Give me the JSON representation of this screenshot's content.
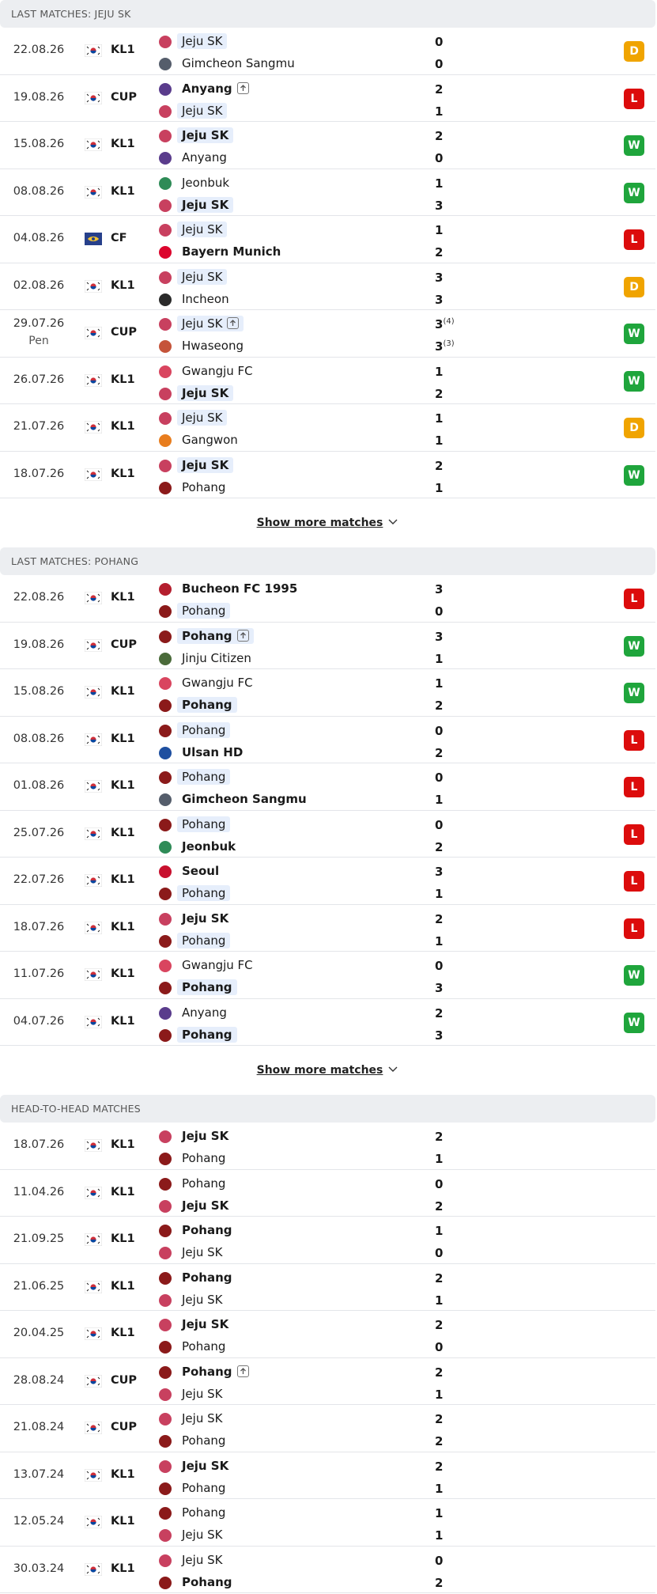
{
  "result_colors": {
    "W": "#1fa53c",
    "L": "#dc0c0c",
    "D": "#f0a400"
  },
  "logo_colors": {
    "Jeju SK": "#c8405f",
    "Gimcheon Sangmu": "#555d6b",
    "Anyang": "#5a3c8c",
    "Jeonbuk": "#2e8b57",
    "Bayern Munich": "#dc052d",
    "Incheon": "#2a2a2a",
    "Hwaseong": "#c5543a",
    "Gwangju FC": "#d9455f",
    "Gangwon": "#e87d1e",
    "Pohang": "#8b1a1a",
    "Bucheon FC 1995": "#b41e2e",
    "Jinju Citizen": "#4a6a3a",
    "Ulsan HD": "#1e4fa0",
    "Seoul": "#c8102e"
  },
  "sections": [
    {
      "title": "LAST MATCHES: JEJU SK",
      "show_more": "Show more matches",
      "matches": [
        {
          "date": "22.08.26",
          "flag": "kr",
          "competition": "KL1",
          "home": {
            "name": "Jeju SK",
            "highlight": true
          },
          "away": {
            "name": "Gimcheon Sangmu"
          },
          "home_score": 0,
          "away_score": 0,
          "result": "D"
        },
        {
          "date": "19.08.26",
          "flag": "kr",
          "competition": "CUP",
          "home": {
            "name": "Anyang",
            "advanced": true
          },
          "away": {
            "name": "Jeju SK",
            "highlight": true
          },
          "home_score": 2,
          "away_score": 1,
          "result": "L"
        },
        {
          "date": "15.08.26",
          "flag": "kr",
          "competition": "KL1",
          "home": {
            "name": "Jeju SK",
            "highlight": true
          },
          "away": {
            "name": "Anyang"
          },
          "home_score": 2,
          "away_score": 0,
          "result": "W"
        },
        {
          "date": "08.08.26",
          "flag": "kr",
          "competition": "KL1",
          "home": {
            "name": "Jeonbuk"
          },
          "away": {
            "name": "Jeju SK",
            "highlight": true
          },
          "home_score": 1,
          "away_score": 3,
          "result": "W"
        },
        {
          "date": "04.08.26",
          "flag": "world",
          "competition": "CF",
          "home": {
            "name": "Jeju SK",
            "highlight": true
          },
          "away": {
            "name": "Bayern Munich"
          },
          "home_score": 1,
          "away_score": 2,
          "result": "L"
        },
        {
          "date": "02.08.26",
          "flag": "kr",
          "competition": "KL1",
          "home": {
            "name": "Jeju SK",
            "highlight": true
          },
          "away": {
            "name": "Incheon"
          },
          "home_score": 3,
          "away_score": 3,
          "result": "D"
        },
        {
          "date": "29.07.26",
          "note": "Pen",
          "flag": "kr",
          "competition": "CUP",
          "home": {
            "name": "Jeju SK",
            "highlight": true,
            "advanced": true
          },
          "away": {
            "name": "Hwaseong"
          },
          "home_score": 3,
          "away_score": 3,
          "home_pen": "(4)",
          "away_pen": "(3)",
          "result": "W"
        },
        {
          "date": "26.07.26",
          "flag": "kr",
          "competition": "KL1",
          "home": {
            "name": "Gwangju FC"
          },
          "away": {
            "name": "Jeju SK",
            "highlight": true
          },
          "home_score": 1,
          "away_score": 2,
          "result": "W"
        },
        {
          "date": "21.07.26",
          "flag": "kr",
          "competition": "KL1",
          "home": {
            "name": "Jeju SK",
            "highlight": true
          },
          "away": {
            "name": "Gangwon"
          },
          "home_score": 1,
          "away_score": 1,
          "result": "D"
        },
        {
          "date": "18.07.26",
          "flag": "kr",
          "competition": "KL1",
          "home": {
            "name": "Jeju SK",
            "highlight": true
          },
          "away": {
            "name": "Pohang"
          },
          "home_score": 2,
          "away_score": 1,
          "result": "W"
        }
      ]
    },
    {
      "title": "LAST MATCHES: POHANG",
      "show_more": "Show more matches",
      "matches": [
        {
          "date": "22.08.26",
          "flag": "kr",
          "competition": "KL1",
          "home": {
            "name": "Bucheon FC 1995"
          },
          "away": {
            "name": "Pohang",
            "highlight": true
          },
          "home_score": 3,
          "away_score": 0,
          "result": "L"
        },
        {
          "date": "19.08.26",
          "flag": "kr",
          "competition": "CUP",
          "home": {
            "name": "Pohang",
            "highlight": true,
            "advanced": true
          },
          "away": {
            "name": "Jinju Citizen"
          },
          "home_score": 3,
          "away_score": 1,
          "result": "W"
        },
        {
          "date": "15.08.26",
          "flag": "kr",
          "competition": "KL1",
          "home": {
            "name": "Gwangju FC"
          },
          "away": {
            "name": "Pohang",
            "highlight": true
          },
          "home_score": 1,
          "away_score": 2,
          "result": "W"
        },
        {
          "date": "08.08.26",
          "flag": "kr",
          "competition": "KL1",
          "home": {
            "name": "Pohang",
            "highlight": true
          },
          "away": {
            "name": "Ulsan HD"
          },
          "home_score": 0,
          "away_score": 2,
          "result": "L"
        },
        {
          "date": "01.08.26",
          "flag": "kr",
          "competition": "KL1",
          "home": {
            "name": "Pohang",
            "highlight": true
          },
          "away": {
            "name": "Gimcheon Sangmu"
          },
          "home_score": 0,
          "away_score": 1,
          "result": "L"
        },
        {
          "date": "25.07.26",
          "flag": "kr",
          "competition": "KL1",
          "home": {
            "name": "Pohang",
            "highlight": true
          },
          "away": {
            "name": "Jeonbuk"
          },
          "home_score": 0,
          "away_score": 2,
          "result": "L"
        },
        {
          "date": "22.07.26",
          "flag": "kr",
          "competition": "KL1",
          "home": {
            "name": "Seoul"
          },
          "away": {
            "name": "Pohang",
            "highlight": true
          },
          "home_score": 3,
          "away_score": 1,
          "result": "L"
        },
        {
          "date": "18.07.26",
          "flag": "kr",
          "competition": "KL1",
          "home": {
            "name": "Jeju SK"
          },
          "away": {
            "name": "Pohang",
            "highlight": true
          },
          "home_score": 2,
          "away_score": 1,
          "result": "L"
        },
        {
          "date": "11.07.26",
          "flag": "kr",
          "competition": "KL1",
          "home": {
            "name": "Gwangju FC"
          },
          "away": {
            "name": "Pohang",
            "highlight": true
          },
          "home_score": 0,
          "away_score": 3,
          "result": "W"
        },
        {
          "date": "04.07.26",
          "flag": "kr",
          "competition": "KL1",
          "home": {
            "name": "Anyang"
          },
          "away": {
            "name": "Pohang",
            "highlight": true
          },
          "home_score": 2,
          "away_score": 3,
          "result": "W"
        }
      ]
    },
    {
      "title": "HEAD-TO-HEAD MATCHES",
      "matches": [
        {
          "date": "18.07.26",
          "flag": "kr",
          "competition": "KL1",
          "home": {
            "name": "Jeju SK"
          },
          "away": {
            "name": "Pohang"
          },
          "home_score": 2,
          "away_score": 1
        },
        {
          "date": "11.04.26",
          "flag": "kr",
          "competition": "KL1",
          "home": {
            "name": "Pohang"
          },
          "away": {
            "name": "Jeju SK"
          },
          "home_score": 0,
          "away_score": 2
        },
        {
          "date": "21.09.25",
          "flag": "kr",
          "competition": "KL1",
          "home": {
            "name": "Pohang"
          },
          "away": {
            "name": "Jeju SK"
          },
          "home_score": 1,
          "away_score": 0
        },
        {
          "date": "21.06.25",
          "flag": "kr",
          "competition": "KL1",
          "home": {
            "name": "Pohang"
          },
          "away": {
            "name": "Jeju SK"
          },
          "home_score": 2,
          "away_score": 1
        },
        {
          "date": "20.04.25",
          "flag": "kr",
          "competition": "KL1",
          "home": {
            "name": "Jeju SK"
          },
          "away": {
            "name": "Pohang"
          },
          "home_score": 2,
          "away_score": 0
        },
        {
          "date": "28.08.24",
          "flag": "kr",
          "competition": "CUP",
          "home": {
            "name": "Pohang",
            "advanced": true
          },
          "away": {
            "name": "Jeju SK"
          },
          "home_score": 2,
          "away_score": 1
        },
        {
          "date": "21.08.24",
          "flag": "kr",
          "competition": "CUP",
          "home": {
            "name": "Jeju SK"
          },
          "away": {
            "name": "Pohang"
          },
          "home_score": 2,
          "away_score": 2
        },
        {
          "date": "13.07.24",
          "flag": "kr",
          "competition": "KL1",
          "home": {
            "name": "Jeju SK"
          },
          "away": {
            "name": "Pohang"
          },
          "home_score": 2,
          "away_score": 1
        },
        {
          "date": "12.05.24",
          "flag": "kr",
          "competition": "KL1",
          "home": {
            "name": "Pohang"
          },
          "away": {
            "name": "Jeju SK"
          },
          "home_score": 1,
          "away_score": 1
        },
        {
          "date": "30.03.24",
          "flag": "kr",
          "competition": "KL1",
          "home": {
            "name": "Jeju SK"
          },
          "away": {
            "name": "Pohang"
          },
          "home_score": 0,
          "away_score": 2
        }
      ]
    }
  ]
}
